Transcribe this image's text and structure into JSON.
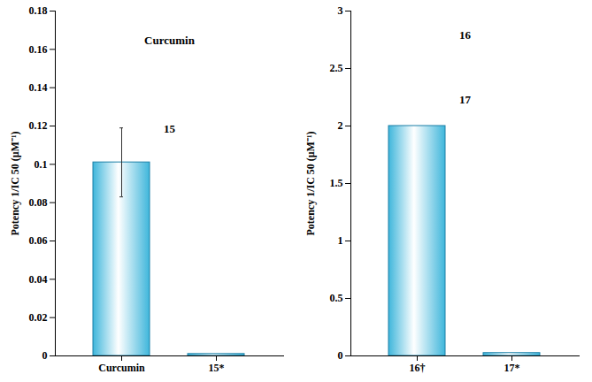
{
  "chart_data": [
    {
      "type": "bar",
      "categories": [
        "Curcumin",
        "15*"
      ],
      "values": [
        0.101,
        0.001
      ],
      "error": [
        0.018,
        null
      ],
      "color": "#3fb6db",
      "ylim": [
        0,
        0.18
      ],
      "yticks": [
        0,
        0.02,
        0.04,
        0.06,
        0.08,
        0.1,
        0.12,
        0.14,
        0.16,
        0.18
      ],
      "y_label": "Potency 1/IC 50 (μM⁻¹)",
      "annotations": [
        "Curcumin",
        "15"
      ]
    },
    {
      "type": "bar",
      "categories": [
        "16†",
        "17*"
      ],
      "values": [
        2.0,
        0.025
      ],
      "error": [
        null,
        null
      ],
      "color": "#3fb6db",
      "ylim": [
        0,
        3
      ],
      "yticks": [
        0,
        0.5,
        1,
        1.5,
        2,
        2.5,
        3
      ],
      "y_label": "Potency 1/IC 50 (μM⁻¹)",
      "annotations": [
        "16",
        "17"
      ]
    }
  ]
}
